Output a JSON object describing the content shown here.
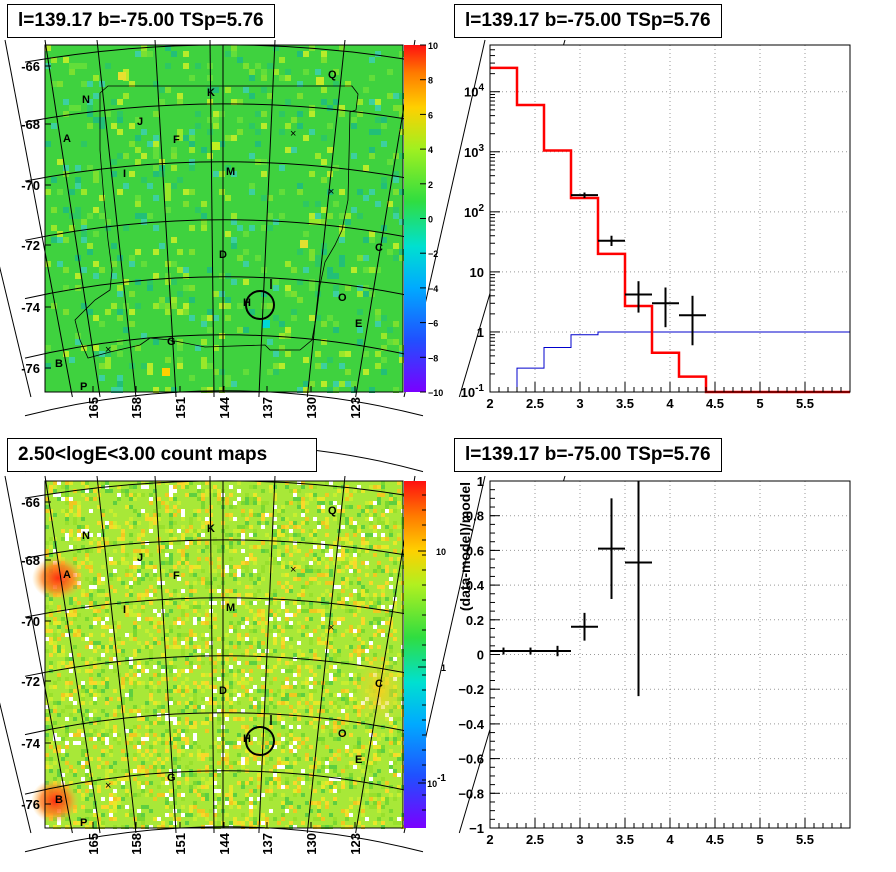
{
  "panels": {
    "top_left_title": "l=139.17 b=-75.00 TSp=5.76",
    "top_right_title": "l=139.17 b=-75.00 TSp=5.76",
    "bottom_left_title": "2.50<logE<3.00 count maps",
    "bottom_right_title": "l=139.17 b=-75.00 TSp=5.76"
  },
  "colors": {
    "model_step": "#ff0000",
    "background_step": "#0000cc",
    "data_points": "#000000"
  },
  "chart_data": [
    {
      "type": "heatmap",
      "name": "ts-map",
      "title": "l=139.17 b=-75.00 TSp=5.76",
      "x_ticks": [
        "165",
        "158",
        "151",
        "144",
        "137",
        "130",
        "123"
      ],
      "y_ticks": [
        "-66",
        "-68",
        "-70",
        "-72",
        "-74",
        "-76"
      ],
      "colorbar_ticks": [
        "10",
        "8",
        "6",
        "4",
        "2",
        "0",
        "−2",
        "−4",
        "−6",
        "−8",
        "−10"
      ],
      "colorbar_range": [
        -10,
        10
      ],
      "source_labels": [
        "Q",
        "K",
        "N",
        "J",
        "A",
        "F",
        "I",
        "M",
        "C",
        "D",
        "H",
        "O",
        "E",
        "G",
        "B",
        "P"
      ]
    },
    {
      "type": "line",
      "name": "spectrum",
      "title": "l=139.17 b=-75.00 TSp=5.76",
      "y_scale": "log",
      "xlim": [
        2,
        6
      ],
      "ylim": [
        0.1,
        60000
      ],
      "x_ticks": [
        "2",
        "2.5",
        "3",
        "3.5",
        "4",
        "4.5",
        "5",
        "5.5"
      ],
      "y_ticks": [
        "10^4",
        "10^3",
        "10^2",
        "10",
        "1",
        "10^-1"
      ],
      "model_steps": {
        "edges": [
          2.0,
          2.3,
          2.6,
          2.9,
          3.2,
          3.5,
          3.8,
          4.1,
          4.4,
          6.0
        ],
        "values": [
          25000,
          6000,
          1050,
          170,
          20,
          2.7,
          0.45,
          0.18,
          0.1
        ]
      },
      "background_steps": {
        "edges": [
          2.3,
          2.6,
          2.9,
          3.2,
          6.0
        ],
        "values": [
          0.25,
          0.55,
          0.9,
          1.0
        ]
      },
      "points": [
        {
          "x": 3.05,
          "xerr": 0.15,
          "y": 190,
          "ylo": 170,
          "yhi": 210
        },
        {
          "x": 3.35,
          "xerr": 0.15,
          "y": 33,
          "ylo": 27,
          "yhi": 40
        },
        {
          "x": 3.65,
          "xerr": 0.15,
          "y": 4.2,
          "ylo": 2.1,
          "yhi": 7.0
        },
        {
          "x": 3.95,
          "xerr": 0.15,
          "y": 3.0,
          "ylo": 1.2,
          "yhi": 5.5
        },
        {
          "x": 4.25,
          "xerr": 0.15,
          "y": 1.9,
          "ylo": 0.6,
          "yhi": 4.0
        }
      ]
    },
    {
      "type": "heatmap",
      "name": "count-map",
      "title": "2.50<logE<3.00 count maps",
      "x_ticks": [
        "165",
        "158",
        "151",
        "144",
        "137",
        "130",
        "123"
      ],
      "y_ticks": [
        "-66",
        "-68",
        "-70",
        "-72",
        "-74",
        "-76"
      ],
      "colorbar_ticks": [
        "10",
        "1",
        "10^-1"
      ],
      "colorbar_scale": "log",
      "source_labels": [
        "Q",
        "K",
        "N",
        "J",
        "A",
        "F",
        "I",
        "M",
        "C",
        "D",
        "H",
        "O",
        "E",
        "G",
        "B",
        "P"
      ]
    },
    {
      "type": "scatter",
      "name": "residuals",
      "title": "l=139.17 b=-75.00 TSp=5.76",
      "ylabel": "(data-model)/model",
      "xlim": [
        2,
        6
      ],
      "ylim": [
        -1,
        1
      ],
      "x_ticks": [
        "2",
        "2.5",
        "3",
        "3.5",
        "4",
        "4.5",
        "5",
        "5.5"
      ],
      "y_ticks": [
        "1",
        "0.8",
        "0.6",
        "0.4",
        "0.2",
        "0",
        "−0.2",
        "−0.4",
        "−0.6",
        "−0.8",
        "−1"
      ],
      "points": [
        {
          "x": 2.15,
          "xerr": 0.15,
          "y": 0.02,
          "ylo": 0.0,
          "yhi": 0.04
        },
        {
          "x": 2.45,
          "xerr": 0.15,
          "y": 0.02,
          "ylo": 0.0,
          "yhi": 0.04
        },
        {
          "x": 2.75,
          "xerr": 0.15,
          "y": 0.02,
          "ylo": -0.01,
          "yhi": 0.05
        },
        {
          "x": 3.05,
          "xerr": 0.15,
          "y": 0.16,
          "ylo": 0.08,
          "yhi": 0.24
        },
        {
          "x": 3.35,
          "xerr": 0.15,
          "y": 0.61,
          "ylo": 0.32,
          "yhi": 0.9
        },
        {
          "x": 3.65,
          "xerr": 0.15,
          "y": 0.53,
          "ylo": -0.24,
          "yhi": 1.0
        }
      ]
    }
  ]
}
